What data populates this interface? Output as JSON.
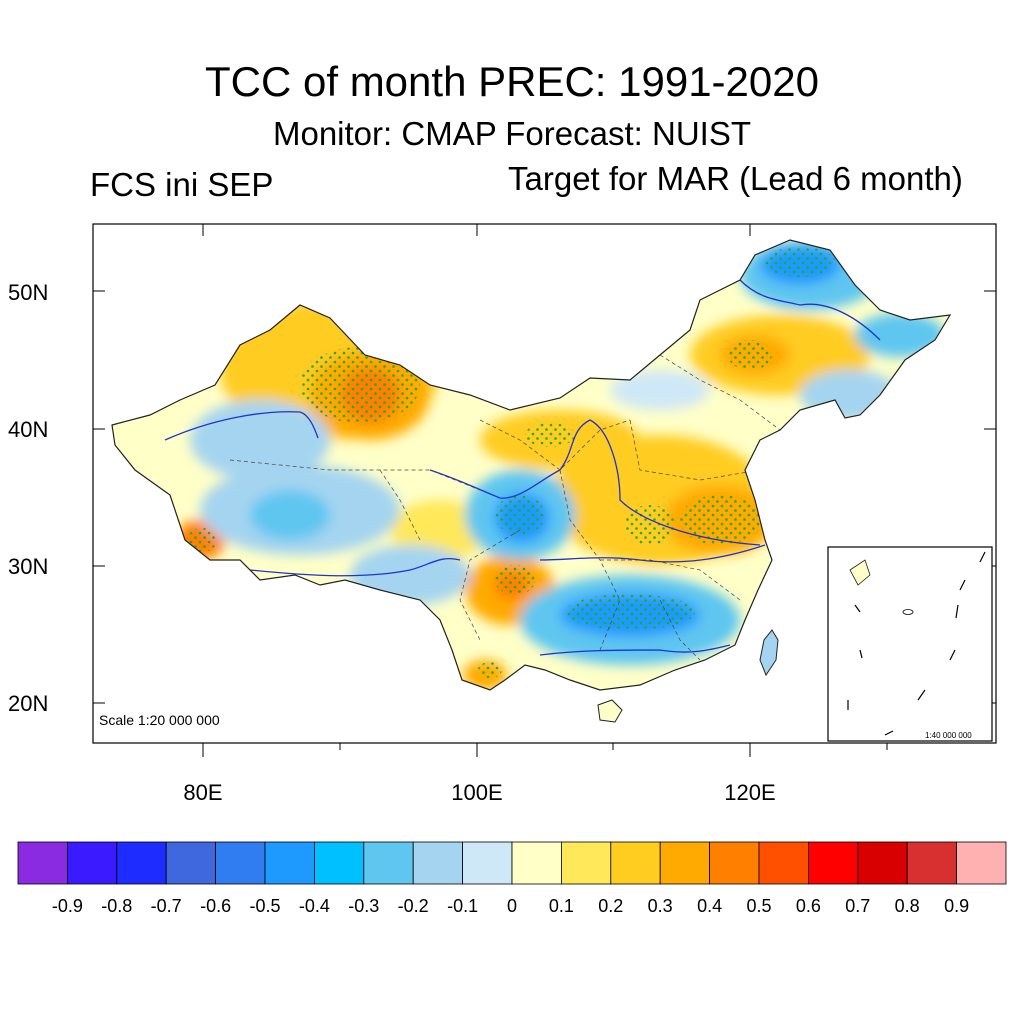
{
  "title": "TCC of month PREC: 1991-2020",
  "subtitle": "Monitor: CMAP   Forecast: NUIST",
  "left_label": "FCS ini SEP",
  "right_label": "Target for MAR (Lead 6 month)",
  "scale_main": "Scale 1:20 000 000",
  "scale_inset": "1:40 000 000",
  "y_ticks": [
    "50N",
    "40N",
    "30N",
    "20N"
  ],
  "x_ticks": [
    "80E",
    "100E",
    "120E"
  ],
  "colorbar": {
    "colors": [
      "#8a2be2",
      "#3b1aff",
      "#1e2cff",
      "#3f68de",
      "#2f7df0",
      "#1e9aff",
      "#00c0ff",
      "#5fc6f0",
      "#a4d4f0",
      "#cfe8f7",
      "#ffffc8",
      "#ffe85a",
      "#ffcc20",
      "#ffaa00",
      "#ff8000",
      "#ff5000",
      "#ff0000",
      "#d80000",
      "#d83030",
      "#ffb0b0"
    ],
    "labels": [
      "-0.9",
      "-0.8",
      "-0.7",
      "-0.6",
      "-0.5",
      "-0.4",
      "-0.3",
      "-0.2",
      "-0.1",
      "0",
      "0.1",
      "0.2",
      "0.3",
      "0.4",
      "0.5",
      "0.6",
      "0.7",
      "0.8",
      "0.9"
    ]
  },
  "stipple_color": "#22aa22"
}
